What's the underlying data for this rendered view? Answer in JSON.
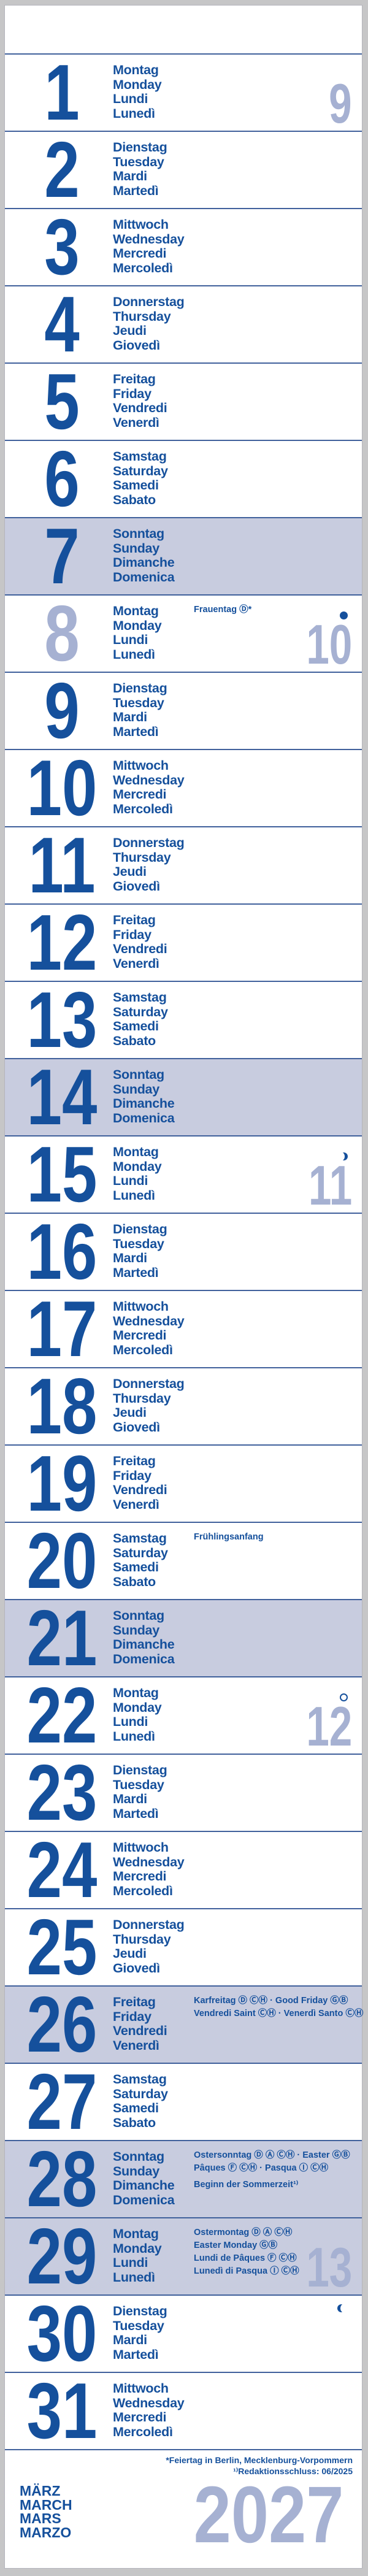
{
  "calendar": {
    "colors": {
      "text_dark_blue": "#15509c",
      "light_number_blue": "#a6b1d2",
      "sunday_holiday_row_bg": "#c8ccdf",
      "row_divider_blue": "#41619c",
      "page_background_gray": "#c6c6c7",
      "strip_background": "#ffffff"
    },
    "days": [
      {
        "num": "1",
        "names": [
          "Montag",
          "Monday",
          "Lundi",
          "Lunedì"
        ],
        "week": "9"
      },
      {
        "num": "2",
        "names": [
          "Dienstag",
          "Tuesday",
          "Mardi",
          "Martedì"
        ]
      },
      {
        "num": "3",
        "names": [
          "Mittwoch",
          "Wednesday",
          "Mercredi",
          "Mercoledì"
        ]
      },
      {
        "num": "4",
        "names": [
          "Donnerstag",
          "Thursday",
          "Jeudi",
          "Giovedì"
        ]
      },
      {
        "num": "5",
        "names": [
          "Freitag",
          "Friday",
          "Vendredi",
          "Venerdì"
        ]
      },
      {
        "num": "6",
        "names": [
          "Samstag",
          "Saturday",
          "Samedi",
          "Sabato"
        ]
      },
      {
        "num": "7",
        "names": [
          "Sonntag",
          "Sunday",
          "Dimanche",
          "Domenica"
        ],
        "highlight": true
      },
      {
        "num": "8",
        "names": [
          "Montag",
          "Monday",
          "Lundi",
          "Lunedì"
        ],
        "week": "10",
        "moon": "new-moon",
        "light_number": true,
        "annotations": [
          "Frauentag Ⓓ*"
        ]
      },
      {
        "num": "9",
        "names": [
          "Dienstag",
          "Tuesday",
          "Mardi",
          "Martedì"
        ]
      },
      {
        "num": "10",
        "names": [
          "Mittwoch",
          "Wednesday",
          "Mercredi",
          "Mercoledì"
        ]
      },
      {
        "num": "11",
        "names": [
          "Donnerstag",
          "Thursday",
          "Jeudi",
          "Giovedì"
        ]
      },
      {
        "num": "12",
        "names": [
          "Freitag",
          "Friday",
          "Vendredi",
          "Venerdì"
        ]
      },
      {
        "num": "13",
        "names": [
          "Samstag",
          "Saturday",
          "Samedi",
          "Sabato"
        ]
      },
      {
        "num": "14",
        "names": [
          "Sonntag",
          "Sunday",
          "Dimanche",
          "Domenica"
        ],
        "highlight": true
      },
      {
        "num": "15",
        "names": [
          "Montag",
          "Monday",
          "Lundi",
          "Lunedì"
        ],
        "week": "11",
        "moon": "first-quarter"
      },
      {
        "num": "16",
        "names": [
          "Dienstag",
          "Tuesday",
          "Mardi",
          "Martedì"
        ]
      },
      {
        "num": "17",
        "names": [
          "Mittwoch",
          "Wednesday",
          "Mercredi",
          "Mercoledì"
        ]
      },
      {
        "num": "18",
        "names": [
          "Donnerstag",
          "Thursday",
          "Jeudi",
          "Giovedì"
        ]
      },
      {
        "num": "19",
        "names": [
          "Freitag",
          "Friday",
          "Vendredi",
          "Venerdì"
        ]
      },
      {
        "num": "20",
        "names": [
          "Samstag",
          "Saturday",
          "Samedi",
          "Sabato"
        ],
        "annotations": [
          "Frühlingsanfang"
        ]
      },
      {
        "num": "21",
        "names": [
          "Sonntag",
          "Sunday",
          "Dimanche",
          "Domenica"
        ],
        "highlight": true
      },
      {
        "num": "22",
        "names": [
          "Montag",
          "Monday",
          "Lundi",
          "Lunedì"
        ],
        "week": "12",
        "moon": "full-moon"
      },
      {
        "num": "23",
        "names": [
          "Dienstag",
          "Tuesday",
          "Mardi",
          "Martedì"
        ]
      },
      {
        "num": "24",
        "names": [
          "Mittwoch",
          "Wednesday",
          "Mercredi",
          "Mercoledì"
        ]
      },
      {
        "num": "25",
        "names": [
          "Donnerstag",
          "Thursday",
          "Jeudi",
          "Giovedì"
        ]
      },
      {
        "num": "26",
        "names": [
          "Freitag",
          "Friday",
          "Vendredi",
          "Venerdì"
        ],
        "highlight": true,
        "annotations": [
          "Karfreitag Ⓓ ⒸⒽ · Good Friday ⒼⒷ",
          "Vendredi Saint ⒸⒽ · Venerdì Santo ⒸⒽ"
        ]
      },
      {
        "num": "27",
        "names": [
          "Samstag",
          "Saturday",
          "Samedi",
          "Sabato"
        ]
      },
      {
        "num": "28",
        "names": [
          "Sonntag",
          "Sunday",
          "Dimanche",
          "Domenica"
        ],
        "highlight": true,
        "annotations": [
          "Ostersonntag Ⓓ Ⓐ ⒸⒽ · Easter ⒼⒷ",
          "Pâques Ⓕ ⒸⒽ · Pasqua Ⓘ ⒸⒽ",
          "",
          "Beginn der Sommerzeit¹⁾"
        ]
      },
      {
        "num": "29",
        "names": [
          "Montag",
          "Monday",
          "Lundi",
          "Lunedì"
        ],
        "week": "13",
        "highlight": true,
        "annotations": [
          "Ostermontag Ⓓ Ⓐ ⒸⒽ",
          "Easter Monday ⒼⒷ",
          "Lundi de Pâques Ⓕ ⒸⒽ",
          "Lunedì di Pasqua Ⓘ ⒸⒽ"
        ]
      },
      {
        "num": "30",
        "names": [
          "Dienstag",
          "Tuesday",
          "Mardi",
          "Martedì"
        ],
        "moon": "last-quarter"
      },
      {
        "num": "31",
        "names": [
          "Mittwoch",
          "Wednesday",
          "Mercredi",
          "Mercoledì"
        ]
      }
    ],
    "moon_phases": {
      "new-moon": "8",
      "first-quarter": "15",
      "full-moon": "22",
      "last-quarter": "30"
    },
    "footer": {
      "footnotes": [
        "*Feiertag in Berlin, Mecklenburg-Vorpommern",
        "¹⁾Redaktionsschluss: 06/2025"
      ],
      "month_names": [
        "MÄRZ",
        "MARCH",
        "MARS",
        "MARZO"
      ],
      "year": "2027"
    }
  }
}
